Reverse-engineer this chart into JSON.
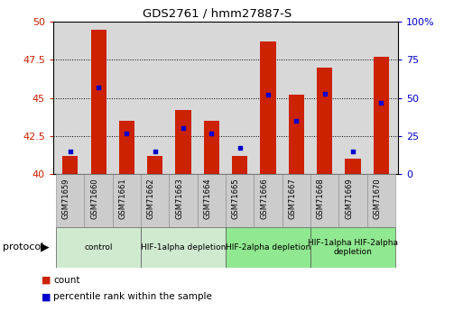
{
  "title": "GDS2761 / hmm27887-S",
  "samples": [
    "GSM71659",
    "GSM71660",
    "GSM71661",
    "GSM71662",
    "GSM71663",
    "GSM71664",
    "GSM71665",
    "GSM71666",
    "GSM71667",
    "GSM71668",
    "GSM71669",
    "GSM71670"
  ],
  "count_values": [
    41.2,
    49.5,
    43.5,
    41.2,
    44.2,
    43.5,
    41.2,
    48.7,
    45.2,
    47.0,
    41.0,
    47.7
  ],
  "count_base": 40.0,
  "percentile_values": [
    15,
    57,
    27,
    15,
    30,
    27,
    17,
    52,
    35,
    53,
    15,
    47
  ],
  "left_ylim": [
    40,
    50
  ],
  "left_yticks": [
    40,
    42.5,
    45,
    47.5,
    50
  ],
  "right_yticks": [
    0,
    25,
    50,
    75,
    100
  ],
  "protocol_groups": [
    {
      "label": "control",
      "start": 0,
      "end": 2,
      "color": "#d0ead0"
    },
    {
      "label": "HIF-1alpha depletion",
      "start": 3,
      "end": 5,
      "color": "#d0ead0"
    },
    {
      "label": "HIF-2alpha depletion",
      "start": 6,
      "end": 8,
      "color": "#90e890"
    },
    {
      "label": "HIF-1alpha HIF-2alpha\ndepletion",
      "start": 9,
      "end": 11,
      "color": "#90e890"
    }
  ],
  "bar_color": "#cc2200",
  "percentile_color": "#0000cc",
  "tick_color_left": "#cc2200",
  "tick_color_right": "#0000cc",
  "plot_bg_color": "#d8d8d8",
  "sample_box_color": "#cccccc",
  "sample_box_edge": "#888888"
}
